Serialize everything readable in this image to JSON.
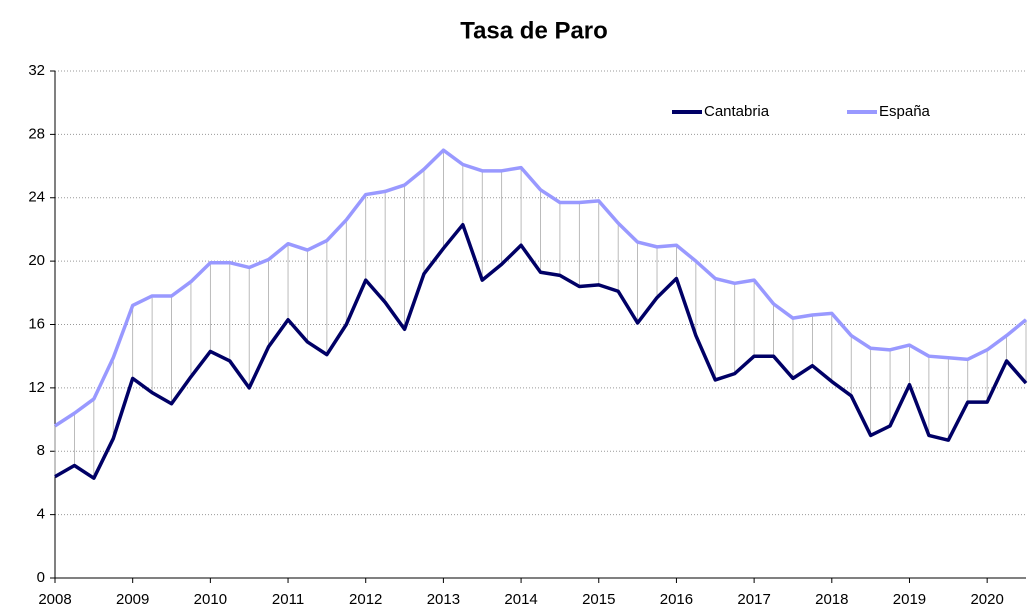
{
  "chart_data": {
    "type": "line",
    "title": "Tasa de Paro",
    "x": [
      2008,
      2008.25,
      2008.5,
      2008.75,
      2009,
      2009.25,
      2009.5,
      2009.75,
      2010,
      2010.25,
      2010.5,
      2010.75,
      2011,
      2011.25,
      2011.5,
      2011.75,
      2012,
      2012.25,
      2012.5,
      2012.75,
      2013,
      2013.25,
      2013.5,
      2013.75,
      2014,
      2014.25,
      2014.5,
      2014.75,
      2015,
      2015.25,
      2015.5,
      2015.75,
      2016,
      2016.25,
      2016.5,
      2016.75,
      2017,
      2017.25,
      2017.5,
      2017.75,
      2018,
      2018.25,
      2018.5,
      2018.75,
      2019,
      2019.25,
      2019.5,
      2019.75,
      2020,
      2020.25,
      2020.5
    ],
    "series": [
      {
        "name": "Cantabria",
        "color": "#000066",
        "values": [
          6.4,
          7.1,
          6.3,
          8.8,
          12.6,
          11.7,
          11.0,
          12.7,
          14.3,
          13.7,
          12.0,
          14.6,
          16.3,
          14.9,
          14.1,
          16.0,
          18.8,
          17.4,
          15.7,
          19.2,
          20.8,
          22.3,
          18.8,
          19.8,
          21.0,
          19.3,
          19.1,
          18.4,
          18.5,
          18.1,
          16.1,
          17.7,
          18.9,
          15.3,
          12.5,
          12.9,
          14.0,
          14.0,
          12.6,
          13.4,
          12.4,
          11.5,
          9.0,
          9.6,
          12.2,
          9.0,
          8.7,
          11.1,
          11.1,
          13.7,
          12.3
        ]
      },
      {
        "name": "España",
        "color": "#9999ff",
        "values": [
          9.6,
          10.4,
          11.3,
          13.9,
          17.2,
          17.8,
          17.8,
          18.7,
          19.9,
          19.9,
          19.6,
          20.1,
          21.1,
          20.7,
          21.3,
          22.6,
          24.2,
          24.4,
          24.8,
          25.8,
          27.0,
          26.1,
          25.7,
          25.7,
          25.9,
          24.5,
          23.7,
          23.7,
          23.8,
          22.4,
          21.2,
          20.9,
          21.0,
          20.0,
          18.9,
          18.6,
          18.8,
          17.3,
          16.4,
          16.6,
          16.7,
          15.3,
          14.5,
          14.4,
          14.7,
          14.0,
          13.9,
          13.8,
          14.4,
          15.3,
          16.3
        ]
      }
    ],
    "xlim": [
      2008,
      2020.5
    ],
    "xticks": [
      2008,
      2009,
      2010,
      2011,
      2012,
      2013,
      2014,
      2015,
      2016,
      2017,
      2018,
      2019,
      2020
    ],
    "ylim": [
      0,
      32
    ],
    "yticks": [
      0,
      4,
      8,
      12,
      16,
      20,
      24,
      28,
      32
    ],
    "grid": true,
    "legend": "upper right"
  }
}
